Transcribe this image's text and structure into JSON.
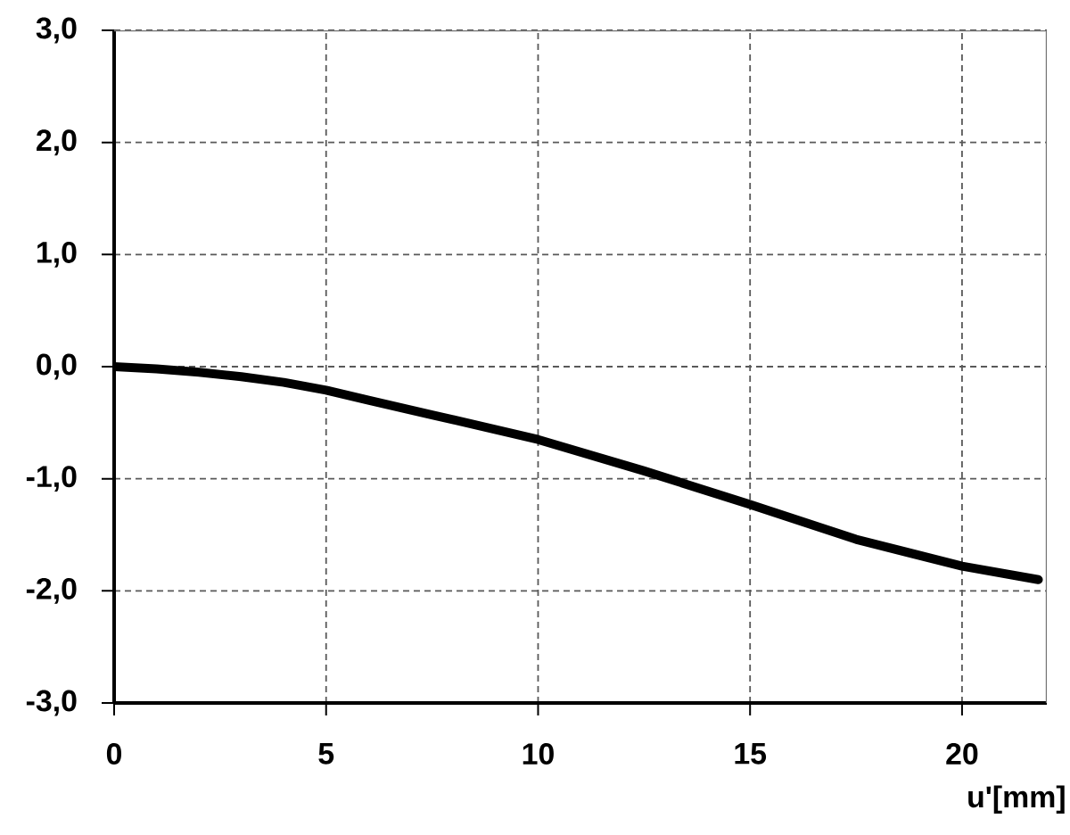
{
  "chart_data": {
    "type": "line",
    "xlabel": "u'[mm]",
    "x": [
      0,
      1,
      2,
      3,
      4,
      5,
      6,
      7.5,
      10,
      12.5,
      15,
      17.5,
      20,
      21.8
    ],
    "series": [
      {
        "color": "#000000",
        "values": [
          0.0,
          -0.02,
          -0.05,
          -0.09,
          -0.14,
          -0.21,
          -0.3,
          -0.43,
          -0.65,
          -0.93,
          -1.23,
          -1.54,
          -1.78,
          -1.9
        ]
      }
    ],
    "xlim": [
      0,
      22
    ],
    "ylim": [
      -3,
      3
    ],
    "xticks": [
      0,
      5,
      10,
      15,
      20
    ],
    "yticks": [
      {
        "value": -3,
        "label": "-3,0"
      },
      {
        "value": -2,
        "label": "-2,0"
      },
      {
        "value": -1,
        "label": "-1,0"
      },
      {
        "value": 0,
        "label": "0,0"
      },
      {
        "value": 1,
        "label": "1,0"
      },
      {
        "value": 2,
        "label": "2,0"
      },
      {
        "value": 3,
        "label": "3,0"
      }
    ],
    "grid": true,
    "marker": "none",
    "line_style": "solid"
  }
}
